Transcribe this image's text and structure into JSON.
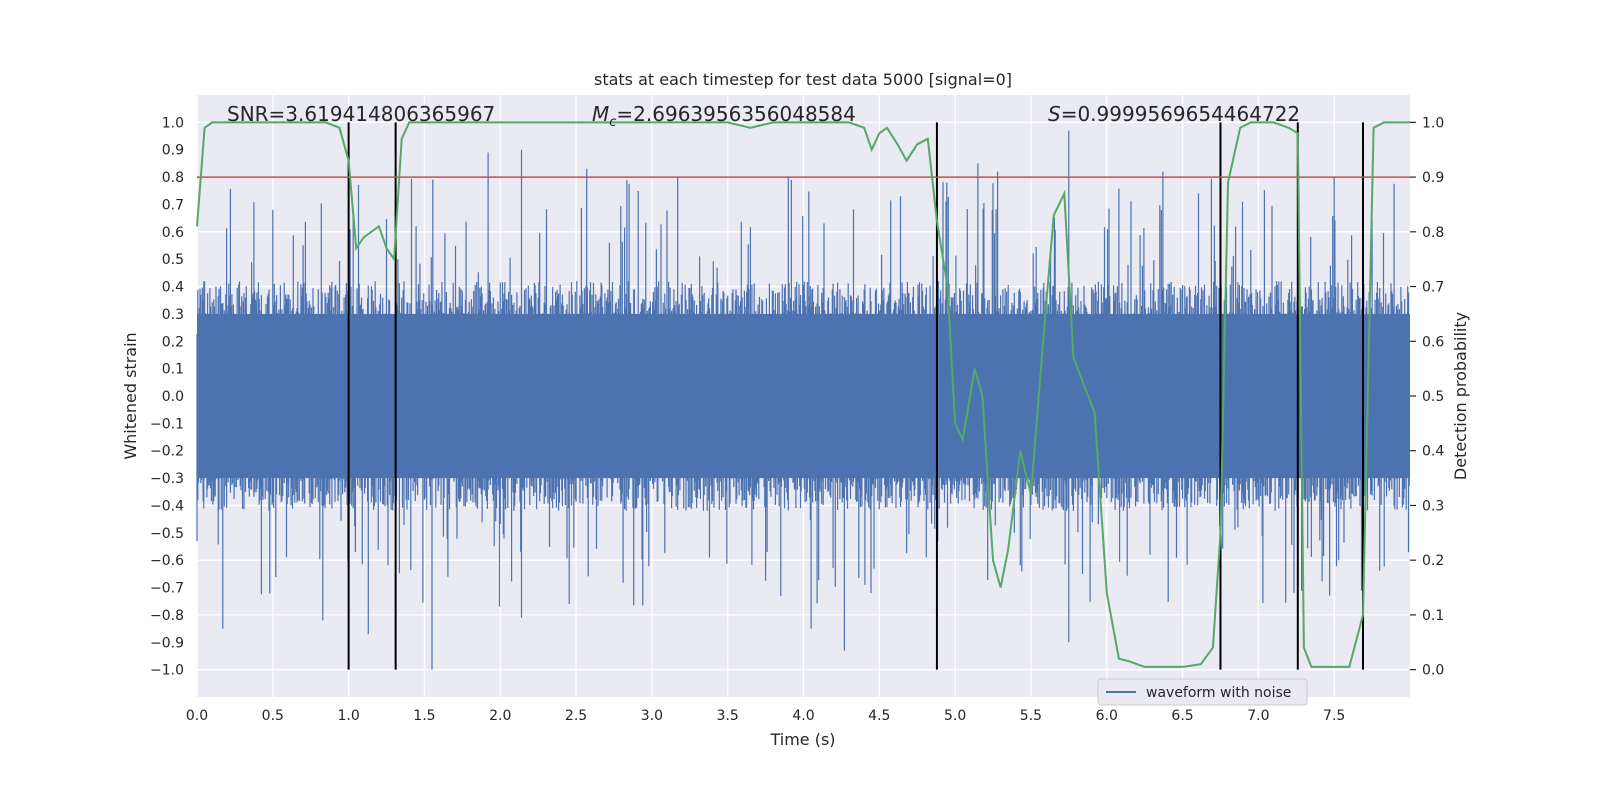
{
  "chart_data": {
    "type": "line",
    "title": "stats at each timestep for test data 5000 [signal=0]",
    "xlabel": "Time (s)",
    "ylabel": "Whitened strain",
    "y2label": "Detection probability",
    "xlim": [
      0.0,
      8.0
    ],
    "ylim": [
      -1.1,
      1.1
    ],
    "y2lim": [
      -0.05,
      1.05
    ],
    "x_ticks": [
      0.0,
      0.5,
      1.0,
      1.5,
      2.0,
      2.5,
      3.0,
      3.5,
      4.0,
      4.5,
      5.0,
      5.5,
      6.0,
      6.5,
      7.0,
      7.5
    ],
    "x_tick_labels": [
      "0.0",
      "0.5",
      "1.0",
      "1.5",
      "2.0",
      "2.5",
      "3.0",
      "3.5",
      "4.0",
      "4.5",
      "5.0",
      "5.5",
      "6.0",
      "6.5",
      "7.0",
      "7.5"
    ],
    "y_ticks": [
      1.0,
      0.9,
      0.8,
      0.7,
      0.6,
      0.5,
      0.4,
      0.3,
      0.2,
      0.1,
      0.0,
      -0.1,
      -0.2,
      -0.3,
      -0.4,
      -0.5,
      -0.6,
      -0.7,
      -0.8,
      -0.9,
      -1.0
    ],
    "y_tick_labels": [
      "1.0",
      "0.9",
      "0.8",
      "0.7",
      "0.6",
      "0.5",
      "0.4",
      "0.3",
      "0.2",
      "0.1",
      "0.0",
      "−0.1",
      "−0.2",
      "−0.3",
      "−0.4",
      "−0.5",
      "−0.6",
      "−0.7",
      "−0.8",
      "−0.9",
      "−1.0"
    ],
    "y2_ticks": [
      1.0,
      0.9,
      0.8,
      0.7,
      0.6,
      0.5,
      0.4,
      0.3,
      0.2,
      0.1,
      0.0
    ],
    "y2_tick_labels": [
      "1.0",
      "0.9",
      "0.8",
      "0.7",
      "0.6",
      "0.5",
      "0.4",
      "0.3",
      "0.2",
      "0.1",
      "0.0"
    ],
    "annotations": {
      "snr": "SNR=3.619414806365967",
      "mc_symbol": "M",
      "mc_sub": "c",
      "mc_value": "=2.6963956356048584",
      "s_symbol": "S",
      "s_value": "=0.9999569654464722"
    },
    "legend": {
      "placement": "lower-right",
      "entries": [
        {
          "label": "waveform with noise",
          "color": "#4c72b0"
        }
      ]
    },
    "threshold": {
      "value": 0.9,
      "axis": "y2",
      "color": "#c44e52"
    },
    "vertical_lines": [
      1.0,
      1.31,
      4.88,
      6.75,
      7.26,
      7.69
    ],
    "vertical_line_range": [
      -1.0,
      1.0
    ],
    "waveform": {
      "name": "waveform with noise",
      "color": "#4c72b0",
      "envelope": "noise, roughly within ±0.45 with spikes up to ±1.0",
      "samples": 1600,
      "seed": 5000,
      "spikes": [
        {
          "x": 0.17,
          "y": -0.85
        },
        {
          "x": 0.5,
          "y": 0.68
        },
        {
          "x": 0.83,
          "y": -0.82
        },
        {
          "x": 1.13,
          "y": -0.87
        },
        {
          "x": 1.55,
          "y": -1.0
        },
        {
          "x": 1.92,
          "y": 0.89
        },
        {
          "x": 2.14,
          "y": 0.9
        },
        {
          "x": 2.14,
          "y": -0.81
        },
        {
          "x": 2.57,
          "y": 0.83
        },
        {
          "x": 3.17,
          "y": 0.8
        },
        {
          "x": 3.9,
          "y": 0.8
        },
        {
          "x": 4.05,
          "y": -0.85
        },
        {
          "x": 4.27,
          "y": -0.93
        },
        {
          "x": 4.64,
          "y": 0.73
        },
        {
          "x": 5.15,
          "y": 0.85
        },
        {
          "x": 5.28,
          "y": 0.82
        },
        {
          "x": 5.75,
          "y": 0.97
        },
        {
          "x": 5.75,
          "y": -0.9
        },
        {
          "x": 6.37,
          "y": 0.82
        },
        {
          "x": 7.26,
          "y": 0.98
        },
        {
          "x": 7.5,
          "y": 0.8
        }
      ]
    },
    "series": [
      {
        "name": "detection probability",
        "axis": "y2",
        "color": "#55a868",
        "x": [
          0.0,
          0.05,
          0.1,
          0.15,
          0.2,
          0.3,
          0.5,
          0.7,
          0.85,
          0.94,
          1.0,
          1.05,
          1.1,
          1.2,
          1.25,
          1.3,
          1.35,
          1.4,
          1.45,
          1.5,
          1.6,
          2.0,
          2.5,
          3.0,
          3.3,
          3.5,
          3.65,
          3.8,
          4.0,
          4.2,
          4.3,
          4.4,
          4.45,
          4.5,
          4.55,
          4.62,
          4.68,
          4.75,
          4.82,
          4.88,
          4.95,
          5.0,
          5.05,
          5.13,
          5.18,
          5.25,
          5.3,
          5.35,
          5.43,
          5.5,
          5.58,
          5.65,
          5.72,
          5.78,
          5.85,
          5.92,
          6.0,
          6.08,
          6.15,
          6.2,
          6.25,
          6.3,
          6.4,
          6.5,
          6.62,
          6.7,
          6.75,
          6.8,
          6.88,
          6.95,
          7.0,
          7.1,
          7.2,
          7.26,
          7.3,
          7.35,
          7.4,
          7.5,
          7.6,
          7.69,
          7.76,
          7.83,
          8.0
        ],
        "y": [
          0.81,
          0.99,
          1.0,
          1.0,
          1.0,
          1.0,
          1.0,
          1.0,
          1.0,
          0.99,
          0.93,
          0.77,
          0.79,
          0.81,
          0.77,
          0.75,
          0.97,
          1.0,
          1.0,
          1.0,
          1.0,
          1.0,
          1.0,
          1.0,
          1.0,
          1.0,
          0.99,
          1.0,
          1.0,
          1.0,
          1.0,
          0.99,
          0.95,
          0.98,
          0.99,
          0.96,
          0.93,
          0.96,
          0.97,
          0.82,
          0.7,
          0.45,
          0.42,
          0.55,
          0.5,
          0.2,
          0.15,
          0.22,
          0.4,
          0.32,
          0.6,
          0.83,
          0.87,
          0.57,
          0.52,
          0.47,
          0.14,
          0.02,
          0.015,
          0.01,
          0.005,
          0.005,
          0.005,
          0.005,
          0.01,
          0.04,
          0.25,
          0.89,
          0.99,
          1.0,
          1.0,
          1.0,
          0.99,
          0.98,
          0.04,
          0.005,
          0.005,
          0.005,
          0.005,
          0.1,
          0.99,
          1.0,
          1.0
        ]
      }
    ]
  }
}
